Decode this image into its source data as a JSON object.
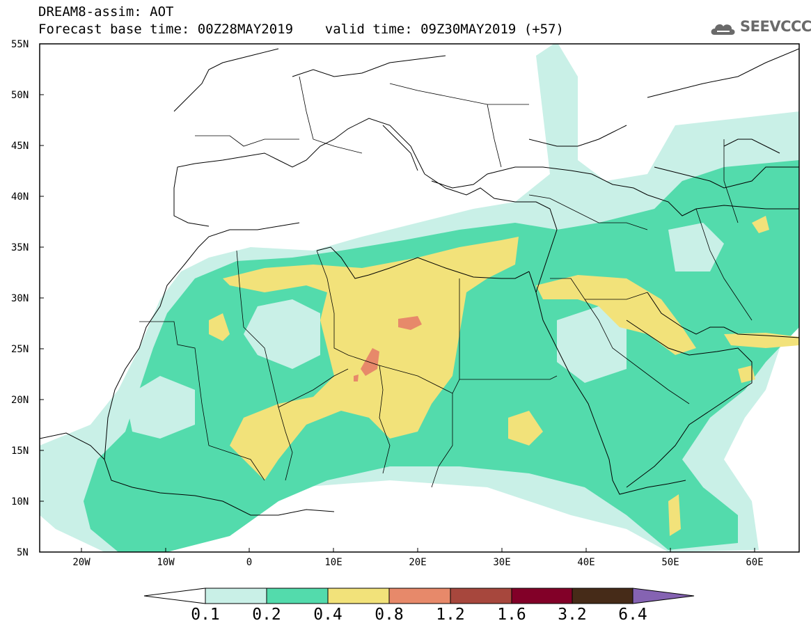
{
  "header": {
    "title_line1": "DREAM8-assim: AOT",
    "title_line2": "Forecast base time: 00Z28MAY2019    valid time: 09Z30MAY2019 (+57)",
    "logo_text": "SEEVCCC"
  },
  "axes": {
    "lat_labels": [
      "55N",
      "50N",
      "45N",
      "40N",
      "35N",
      "30N",
      "25N",
      "20N",
      "15N",
      "10N",
      "5N"
    ],
    "lon_labels": [
      "20W",
      "10W",
      "0",
      "10E",
      "20E",
      "30E",
      "40E",
      "50E",
      "60E"
    ]
  },
  "colorbar": {
    "ticks": [
      "0.1",
      "0.2",
      "0.4",
      "0.8",
      "1.2",
      "1.6",
      "3.2",
      "6.4"
    ],
    "colors": [
      "#c9f0e7",
      "#53dbac",
      "#f2e27a",
      "#e7896a",
      "#a7473d",
      "#820028",
      "#462b18",
      "#8563b2"
    ]
  },
  "colors": {
    "low": "#c9f0e7",
    "mid": "#53dbac",
    "high": "#f2e27a",
    "peak": "#e7896a"
  }
}
